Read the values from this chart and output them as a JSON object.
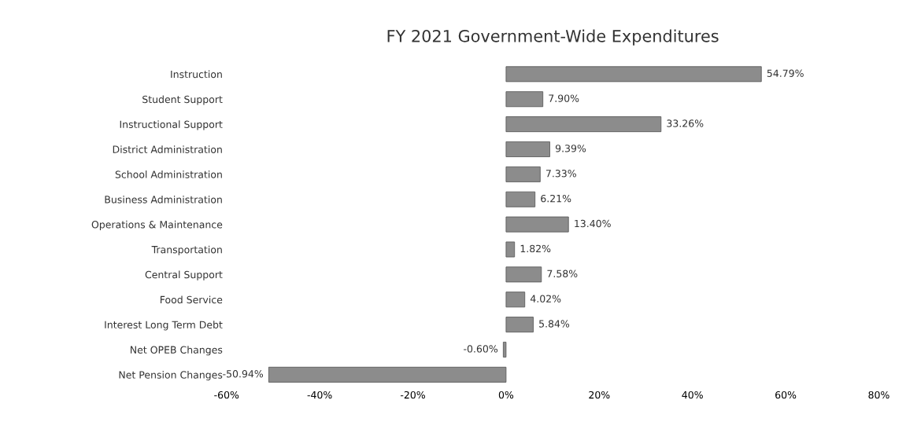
{
  "chart_data": {
    "type": "bar",
    "orientation": "horizontal",
    "title": "FY 2021 Government-Wide Expenditures",
    "categories": [
      "Instruction",
      "Student Support",
      "Instructional Support",
      "District Administration",
      "School Administration",
      "Business Administration",
      "Operations & Maintenance",
      "Transportation",
      "Central Support",
      "Food Service",
      "Interest Long Term Debt",
      "Net OPEB Changes",
      "Net Pension Changes"
    ],
    "values": [
      54.79,
      7.9,
      33.26,
      9.39,
      7.33,
      6.21,
      13.4,
      1.82,
      7.58,
      4.02,
      5.84,
      -0.6,
      -50.94
    ],
    "value_labels": [
      "54.79%",
      "7.90%",
      "33.26%",
      "9.39%",
      "7.33%",
      "6.21%",
      "13.40%",
      "1.82%",
      "7.58%",
      "4.02%",
      "5.84%",
      "-0.60%",
      "-50.94%"
    ],
    "color": "#8c8c8c",
    "xlim": [
      -60,
      80
    ],
    "xticks": [
      {
        "value": -60,
        "label": "-60%"
      },
      {
        "value": -40,
        "label": "-40%"
      },
      {
        "value": -20,
        "label": "-20%"
      },
      {
        "value": 0,
        "label": "0%"
      },
      {
        "value": 20,
        "label": "20%"
      },
      {
        "value": 40,
        "label": "40%"
      },
      {
        "value": 60,
        "label": "60%"
      },
      {
        "value": 80,
        "label": "80%"
      }
    ],
    "grid": false,
    "legend": false
  }
}
